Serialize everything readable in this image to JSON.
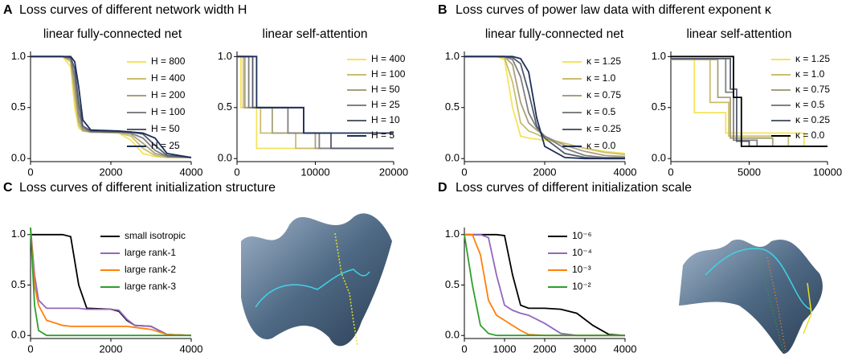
{
  "panels": [
    {
      "label": "A",
      "title": "Loss curves of different network width H"
    },
    {
      "label": "B",
      "title": "Loss curves of power law data with different exponent κ"
    },
    {
      "label": "C",
      "title": "Loss curves of different initialization structure"
    },
    {
      "label": "D",
      "title": "Loss curves of different initialization scale"
    }
  ],
  "chart_data": [
    {
      "type": "line",
      "title": "linear fully-connected net",
      "legend": "upper right",
      "x": [
        0,
        800,
        1000,
        1100,
        1200,
        1300,
        1500,
        2200,
        2500,
        2800,
        3100,
        3400,
        4000
      ],
      "xlim": [
        0,
        4000
      ],
      "xticks": [
        0,
        2000,
        4000
      ],
      "ylim": [
        -0.03,
        1.05
      ],
      "yticks": [
        {
          "value": 0,
          "label": "0.0"
        },
        {
          "value": 0.5,
          "label": "0.5"
        },
        {
          "value": 1,
          "label": "1.0"
        }
      ],
      "series": [
        {
          "name": "H = 800",
          "color": "#f5e35a",
          "values": [
            1,
            1,
            0.9,
            0.5,
            0.3,
            0.27,
            0.26,
            0.25,
            0.18,
            0.05,
            0.02,
            0.01,
            0.01
          ]
        },
        {
          "name": "H = 400",
          "color": "#cbbd6e",
          "values": [
            1,
            1,
            0.95,
            0.6,
            0.33,
            0.27,
            0.26,
            0.25,
            0.22,
            0.1,
            0.03,
            0.01,
            0.01
          ]
        },
        {
          "name": "H = 200",
          "color": "#a6a07c",
          "values": [
            1,
            1,
            0.97,
            0.7,
            0.38,
            0.28,
            0.26,
            0.26,
            0.24,
            0.15,
            0.05,
            0.02,
            0.01
          ]
        },
        {
          "name": "H = 100",
          "color": "#808080",
          "values": [
            1,
            1,
            0.98,
            0.8,
            0.45,
            0.3,
            0.26,
            0.26,
            0.25,
            0.2,
            0.08,
            0.02,
            0.01
          ]
        },
        {
          "name": "H = 50",
          "color": "#545b6b",
          "values": [
            1,
            1,
            0.99,
            0.88,
            0.55,
            0.32,
            0.27,
            0.26,
            0.26,
            0.24,
            0.13,
            0.03,
            0.01
          ]
        },
        {
          "name": "H = 25",
          "color": "#1c2d57",
          "values": [
            1,
            1,
            1,
            0.95,
            0.7,
            0.38,
            0.28,
            0.27,
            0.26,
            0.25,
            0.2,
            0.05,
            0.01
          ]
        }
      ]
    },
    {
      "type": "line",
      "title": "linear self-attention",
      "legend": "upper right",
      "xlim": [
        0,
        20000
      ],
      "xticks": [
        0,
        10000,
        20000
      ],
      "ylim": [
        -0.03,
        1.05
      ],
      "yticks": [
        {
          "value": 0,
          "label": "0.0"
        },
        {
          "value": 0.5,
          "label": "0.5"
        },
        {
          "value": 1,
          "label": "1.0"
        }
      ],
      "series": [
        {
          "name": "H = 400",
          "color": "#f5e35a",
          "x": [
            0,
            500,
            500,
            2500,
            2500,
            20000
          ],
          "values": [
            1,
            1,
            0.5,
            0.5,
            0.1,
            0.1
          ]
        },
        {
          "name": "H = 100",
          "color": "#cbbd6e",
          "x": [
            0,
            800,
            800,
            3000,
            3000,
            7500,
            7500,
            20000
          ],
          "values": [
            1,
            1,
            0.5,
            0.5,
            0.25,
            0.25,
            0.1,
            0.1
          ]
        },
        {
          "name": "H = 50",
          "color": "#a6a07c",
          "x": [
            0,
            1000,
            1000,
            4500,
            4500,
            10000,
            10000,
            20000
          ],
          "values": [
            1,
            1,
            0.5,
            0.5,
            0.25,
            0.25,
            0.1,
            0.1
          ]
        },
        {
          "name": "H = 25",
          "color": "#808080",
          "x": [
            0,
            1500,
            1500,
            6500,
            6500,
            10500,
            10500,
            20000
          ],
          "values": [
            1,
            1,
            0.5,
            0.5,
            0.25,
            0.25,
            0.1,
            0.1
          ]
        },
        {
          "name": "H = 10",
          "color": "#545b6b",
          "x": [
            0,
            2000,
            2000,
            8500,
            8500,
            12000,
            12000,
            20000
          ],
          "values": [
            1,
            1,
            0.5,
            0.5,
            0.25,
            0.25,
            0.1,
            0.1
          ]
        },
        {
          "name": "H = 5",
          "color": "#1c2d57",
          "x": [
            0,
            2500,
            2500,
            8500,
            8500,
            20000
          ],
          "values": [
            1,
            1,
            0.5,
            0.5,
            0.25,
            0.25
          ]
        }
      ]
    },
    {
      "type": "line",
      "title": "linear fully-connected net",
      "legend": "upper right",
      "x": [
        0,
        800,
        1000,
        1200,
        1400,
        1600,
        1800,
        2000,
        2500,
        3000,
        3500,
        4000
      ],
      "xlim": [
        0,
        4000
      ],
      "xticks": [
        0,
        2000,
        4000
      ],
      "ylim": [
        -0.03,
        1.05
      ],
      "yticks": [
        {
          "value": 0,
          "label": "0.0"
        },
        {
          "value": 0.5,
          "label": "0.5"
        },
        {
          "value": 1,
          "label": "1.0"
        }
      ],
      "series": [
        {
          "name": "κ = 1.25",
          "color": "#f5e35a",
          "values": [
            1,
            1,
            0.97,
            0.5,
            0.22,
            0.2,
            0.19,
            0.18,
            0.15,
            0.1,
            0.07,
            0.05
          ]
        },
        {
          "name": "κ = 1.0",
          "color": "#cbbd6e",
          "values": [
            1,
            1,
            0.99,
            0.75,
            0.35,
            0.27,
            0.24,
            0.2,
            0.15,
            0.1,
            0.06,
            0.04
          ]
        },
        {
          "name": "κ = 0.75",
          "color": "#a6a07c",
          "values": [
            1,
            1,
            1,
            0.92,
            0.55,
            0.35,
            0.28,
            0.22,
            0.13,
            0.07,
            0.03,
            0.02
          ]
        },
        {
          "name": "κ = 0.5",
          "color": "#808080",
          "values": [
            1,
            1,
            1,
            0.97,
            0.8,
            0.45,
            0.3,
            0.22,
            0.1,
            0.03,
            0.01,
            0.01
          ]
        },
        {
          "name": "κ = 0.25",
          "color": "#545b6b",
          "values": [
            1,
            1,
            1,
            0.99,
            0.93,
            0.65,
            0.32,
            0.2,
            0.05,
            0.01,
            0,
            0
          ]
        },
        {
          "name": "κ = 0.0",
          "color": "#1c2d57",
          "values": [
            1,
            1,
            1,
            1,
            0.98,
            0.85,
            0.4,
            0.12,
            0.01,
            0,
            0,
            0
          ]
        }
      ]
    },
    {
      "type": "line",
      "title": "linear self-attention",
      "legend": "upper right",
      "xlim": [
        0,
        10000
      ],
      "xticks": [
        0,
        5000,
        10000
      ],
      "ylim": [
        -0.03,
        1.05
      ],
      "yticks": [
        {
          "value": 0,
          "label": "0.0"
        },
        {
          "value": 0.5,
          "label": "0.5"
        },
        {
          "value": 1,
          "label": "1.0"
        }
      ],
      "series": [
        {
          "name": "κ = 1.25",
          "color": "#f5e35a",
          "x": [
            0,
            1500,
            1500,
            3500,
            3500,
            8500,
            8500,
            10000
          ],
          "values": [
            0.97,
            0.97,
            0.45,
            0.45,
            0.25,
            0.25,
            0.12,
            0.12
          ]
        },
        {
          "name": "κ = 1.0",
          "color": "#cbbd6e",
          "x": [
            0,
            2500,
            2500,
            3700,
            3700,
            7500,
            7500,
            10000
          ],
          "values": [
            0.97,
            0.97,
            0.55,
            0.55,
            0.22,
            0.22,
            0.12,
            0.12
          ]
        },
        {
          "name": "κ = 0.75",
          "color": "#a6a07c",
          "x": [
            0,
            3000,
            3000,
            3800,
            3800,
            6500,
            6500,
            10000
          ],
          "values": [
            0.97,
            0.97,
            0.6,
            0.6,
            0.2,
            0.2,
            0.12,
            0.12
          ]
        },
        {
          "name": "κ = 0.5",
          "color": "#808080",
          "x": [
            0,
            3500,
            3500,
            4000,
            4000,
            5500,
            5500,
            10000
          ],
          "values": [
            0.98,
            0.98,
            0.65,
            0.65,
            0.18,
            0.18,
            0.12,
            0.12
          ]
        },
        {
          "name": "κ = 0.25",
          "color": "#545b6b",
          "x": [
            0,
            3800,
            3800,
            4200,
            4200,
            5000,
            5000,
            10000
          ],
          "values": [
            0.98,
            0.98,
            0.68,
            0.68,
            0.17,
            0.17,
            0.12,
            0.12
          ]
        },
        {
          "name": "κ = 0.0",
          "color": "#000000",
          "x": [
            0,
            4000,
            4000,
            4500,
            4500,
            10000
          ],
          "values": [
            1,
            1,
            0.6,
            0.6,
            0.12,
            0.12
          ]
        }
      ]
    },
    {
      "type": "line",
      "legend": "upper right",
      "x": [
        0,
        100,
        200,
        400,
        800,
        1000,
        1200,
        1400,
        2000,
        2200,
        2400,
        2600,
        3000,
        3400,
        4000
      ],
      "xlim": [
        0,
        4000
      ],
      "xticks": [
        0,
        2000,
        4000
      ],
      "ylim": [
        -0.03,
        1.07
      ],
      "yticks": [
        {
          "value": 0,
          "label": "0.0"
        },
        {
          "value": 0.5,
          "label": "0.5"
        },
        {
          "value": 1,
          "label": "1.0"
        }
      ],
      "series": [
        {
          "name": "small isotropic",
          "color": "#000000",
          "values": [
            1,
            1,
            1,
            1,
            1,
            0.98,
            0.5,
            0.27,
            0.26,
            0.24,
            0.15,
            0.1,
            0.09,
            0.01,
            0
          ]
        },
        {
          "name": "large rank-1",
          "color": "#9467bd",
          "values": [
            1.07,
            0.6,
            0.35,
            0.27,
            0.27,
            0.27,
            0.27,
            0.26,
            0.26,
            0.25,
            0.16,
            0.1,
            0.09,
            0.01,
            0
          ]
        },
        {
          "name": "large rank-2",
          "color": "#ff7f0e",
          "values": [
            1.07,
            0.5,
            0.3,
            0.15,
            0.1,
            0.09,
            0.09,
            0.09,
            0.09,
            0.09,
            0.09,
            0.08,
            0.06,
            0.01,
            0
          ]
        },
        {
          "name": "large rank-3",
          "color": "#2ca02c",
          "values": [
            1.07,
            0.3,
            0.05,
            0,
            0,
            0,
            0,
            0,
            0,
            0,
            0,
            0,
            0,
            0,
            0
          ]
        }
      ]
    },
    {
      "type": "line",
      "legend": "upper right",
      "x": [
        0,
        200,
        400,
        600,
        800,
        1000,
        1200,
        1400,
        1600,
        2000,
        2400,
        2800,
        3200,
        3600,
        4000
      ],
      "xlim": [
        0,
        4000
      ],
      "xticks": [
        0,
        1000,
        2000,
        3000,
        4000
      ],
      "ylim": [
        -0.03,
        1.07
      ],
      "yticks": [
        {
          "value": 0,
          "label": "0.0"
        },
        {
          "value": 0.5,
          "label": "0.5"
        },
        {
          "value": 1,
          "label": "1.0"
        }
      ],
      "series": [
        {
          "name": "10⁻⁶",
          "color": "#000000",
          "values": [
            1,
            1,
            1,
            1,
            1,
            0.99,
            0.6,
            0.3,
            0.27,
            0.27,
            0.26,
            0.22,
            0.1,
            0.01,
            0
          ]
        },
        {
          "name": "10⁻⁴",
          "color": "#9467bd",
          "values": [
            1,
            1,
            1,
            0.97,
            0.6,
            0.3,
            0.25,
            0.22,
            0.2,
            0.12,
            0.02,
            0,
            0,
            0,
            0
          ]
        },
        {
          "name": "10⁻³",
          "color": "#ff7f0e",
          "values": [
            1,
            1,
            0.8,
            0.35,
            0.2,
            0.15,
            0.1,
            0.05,
            0.01,
            0,
            0,
            0,
            0,
            0,
            0
          ]
        },
        {
          "name": "10⁻²",
          "color": "#2ca02c",
          "values": [
            1,
            0.5,
            0.1,
            0.02,
            0,
            0,
            0,
            0,
            0,
            0,
            0,
            0,
            0,
            0,
            0
          ]
        }
      ]
    }
  ]
}
